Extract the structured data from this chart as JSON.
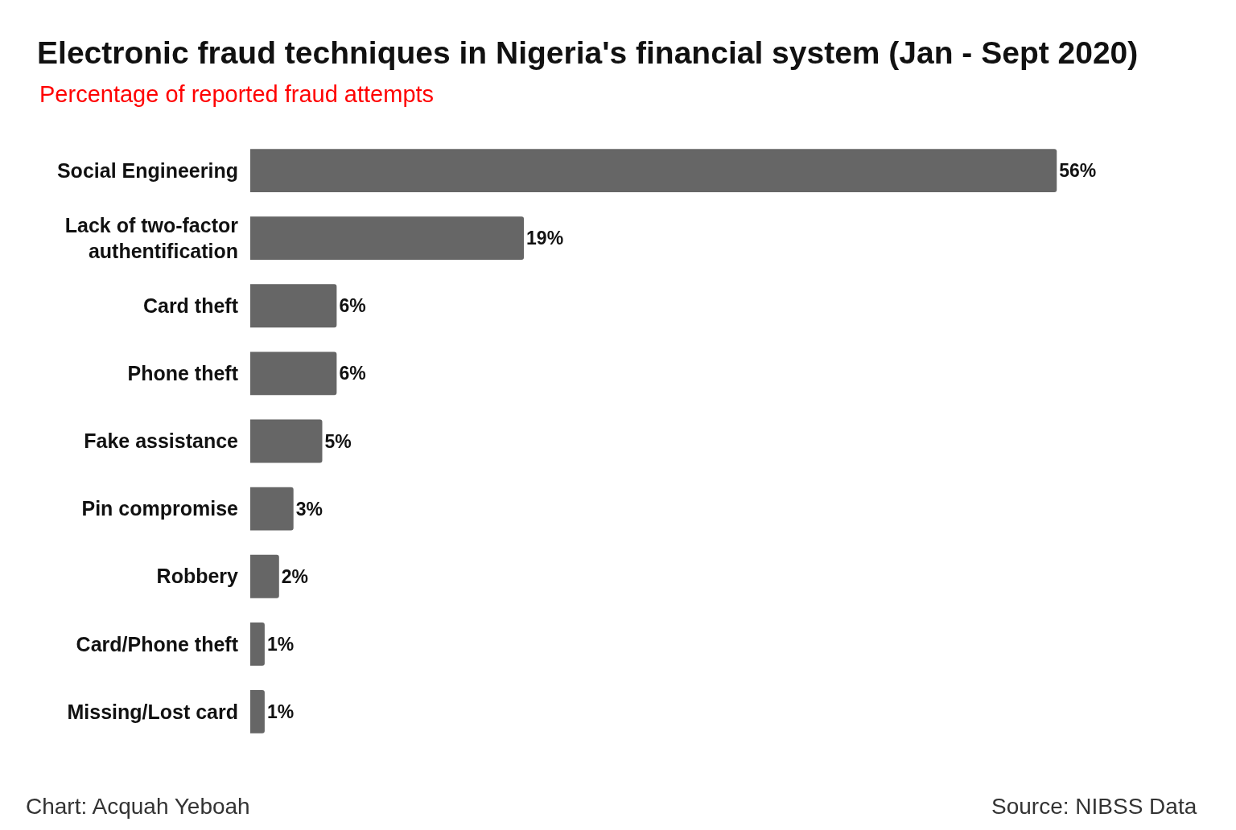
{
  "chart_data": {
    "type": "bar",
    "orientation": "horizontal",
    "title": "Electronic fraud techniques in Nigeria's financial system (Jan - Sept 2020)",
    "subtitle": "Percentage of reported fraud attempts",
    "categories": [
      "Social Engineering",
      "Lack of two-factor authentification",
      "Card theft",
      "Phone theft",
      "Fake assistance",
      "Pin compromise",
      "Robbery",
      "Card/Phone theft",
      "Missing/Lost card"
    ],
    "values": [
      56,
      19,
      6,
      6,
      5,
      3,
      2,
      1,
      1
    ],
    "value_labels": [
      "56%",
      "19%",
      "6%",
      "6%",
      "5%",
      "3%",
      "2%",
      "1%",
      "1%"
    ],
    "color": "#666666",
    "tick_labels": "y",
    "grid": false,
    "legend": false,
    "annotations": [
      "Chart: Acquah Yeboah",
      "Source: NIBSS Data"
    ]
  }
}
